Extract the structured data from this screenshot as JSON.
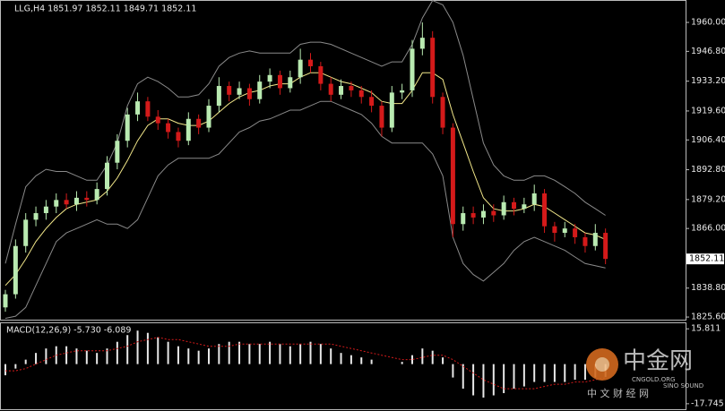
{
  "chart_data": [
    {
      "type": "candlestick",
      "title": "LLG,H4  1851.97 1852.11 1849.71 1852.11",
      "up_color": "#b9eab1",
      "down_color": "#d41a1a",
      "open": [
        1830,
        1836,
        1858,
        1870,
        1873,
        1876,
        1879,
        1877,
        1880,
        1879,
        1884,
        1896,
        1906,
        1918,
        1924,
        1917,
        1914,
        1910,
        1906,
        1916,
        1912,
        1922,
        1931,
        1927,
        1930,
        1925,
        1933,
        1936,
        1930,
        1935,
        1943,
        1940,
        1932,
        1927,
        1931,
        1929,
        1926,
        1922,
        1912,
        1928,
        1929,
        1948,
        1953,
        1926,
        1912,
        1868,
        1873,
        1871,
        1874,
        1872,
        1878,
        1875,
        1877,
        1882,
        1867,
        1864,
        1866,
        1862,
        1858,
        1864
      ],
      "high": [
        1838,
        1861,
        1873,
        1876,
        1879,
        1882,
        1882,
        1883,
        1883,
        1887,
        1899,
        1909,
        1921,
        1928,
        1926,
        1920,
        1916,
        1912,
        1919,
        1918,
        1925,
        1935,
        1933,
        1933,
        1932,
        1936,
        1939,
        1938,
        1938,
        1948,
        1946,
        1942,
        1935,
        1934,
        1933,
        1931,
        1929,
        1924,
        1931,
        1932,
        1952,
        1960,
        1956,
        1928,
        1914,
        1876,
        1876,
        1877,
        1877,
        1881,
        1880,
        1880,
        1886,
        1884,
        1869,
        1869,
        1868,
        1864,
        1868,
        1866
      ],
      "low": [
        1828,
        1834,
        1855,
        1867,
        1870,
        1873,
        1875,
        1874,
        1876,
        1877,
        1881,
        1893,
        1903,
        1915,
        1915,
        1911,
        1907,
        1903,
        1904,
        1909,
        1910,
        1919,
        1924,
        1925,
        1922,
        1923,
        1930,
        1927,
        1928,
        1932,
        1937,
        1929,
        1924,
        1925,
        1926,
        1923,
        1919,
        1908,
        1910,
        1925,
        1926,
        1945,
        1923,
        1909,
        1862,
        1865,
        1868,
        1868,
        1869,
        1870,
        1872,
        1873,
        1874,
        1864,
        1860,
        1862,
        1859,
        1855,
        1856,
        1849.71
      ],
      "close": [
        1836,
        1858,
        1870,
        1873,
        1876,
        1879,
        1877,
        1880,
        1879,
        1884,
        1896,
        1906,
        1918,
        1924,
        1917,
        1914,
        1910,
        1906,
        1916,
        1912,
        1922,
        1931,
        1927,
        1930,
        1925,
        1933,
        1936,
        1930,
        1935,
        1943,
        1940,
        1932,
        1927,
        1931,
        1929,
        1926,
        1922,
        1912,
        1928,
        1929,
        1948,
        1953,
        1926,
        1912,
        1868,
        1873,
        1871,
        1874,
        1872,
        1878,
        1875,
        1877,
        1882,
        1867,
        1864,
        1866,
        1862,
        1858,
        1864,
        1852.11
      ],
      "overlays": [
        {
          "color": "#f3e88a",
          "values": [
            1840,
            1845,
            1852,
            1860,
            1866,
            1871,
            1875,
            1877,
            1878,
            1879,
            1883,
            1889,
            1897,
            1906,
            1913,
            1916,
            1916,
            1914,
            1913,
            1913,
            1915,
            1919,
            1923,
            1926,
            1928,
            1929,
            1931,
            1932,
            1932,
            1935,
            1937,
            1937,
            1935,
            1933,
            1932,
            1930,
            1928,
            1924,
            1923,
            1923,
            1929,
            1937,
            1937,
            1934,
            1918,
            1905,
            1892,
            1880,
            1875,
            1874,
            1874,
            1875,
            1877,
            1876,
            1873,
            1870,
            1867,
            1864,
            1863,
            1861
          ]
        },
        {
          "color": "#8a8a8a",
          "values": [
            1850,
            1868,
            1885,
            1890,
            1893,
            1892,
            1892,
            1890,
            1888,
            1888,
            1895,
            1905,
            1922,
            1932,
            1935,
            1933,
            1930,
            1926,
            1926,
            1927,
            1932,
            1940,
            1944,
            1946,
            1947,
            1946,
            1946,
            1946,
            1946,
            1950,
            1951,
            1951,
            1950,
            1948,
            1946,
            1944,
            1942,
            1940,
            1942,
            1942,
            1950,
            1962,
            1970,
            1968,
            1960,
            1945,
            1925,
            1905,
            1895,
            1890,
            1888,
            1888,
            1890,
            1890,
            1888,
            1885,
            1882,
            1878,
            1875,
            1872
          ]
        },
        {
          "color": "#8a8a8a",
          "values": [
            1825,
            1826,
            1830,
            1840,
            1850,
            1860,
            1864,
            1866,
            1868,
            1870,
            1868,
            1868,
            1866,
            1870,
            1880,
            1890,
            1895,
            1898,
            1898,
            1898,
            1898,
            1900,
            1905,
            1910,
            1912,
            1915,
            1916,
            1918,
            1920,
            1920,
            1922,
            1924,
            1924,
            1922,
            1920,
            1918,
            1914,
            1908,
            1905,
            1905,
            1905,
            1905,
            1900,
            1890,
            1862,
            1850,
            1845,
            1842,
            1846,
            1850,
            1856,
            1860,
            1862,
            1860,
            1858,
            1856,
            1853,
            1850,
            1849,
            1848
          ]
        }
      ],
      "ylim": [
        1824.4,
        1969
      ],
      "yticks": [
        {
          "value": 1960,
          "label": "1960.00"
        },
        {
          "value": 1946.8,
          "label": "1946.80"
        },
        {
          "value": 1933.2,
          "label": "1933.20"
        },
        {
          "value": 1919.6,
          "label": "1919.60"
        },
        {
          "value": 1906.4,
          "label": "1906.40"
        },
        {
          "value": 1892.8,
          "label": "1892.80"
        },
        {
          "value": 1879.2,
          "label": "1879.20"
        },
        {
          "value": 1866,
          "label": "1866.00"
        },
        {
          "value": 1838.8,
          "label": "1838.80"
        },
        {
          "value": 1825.6,
          "label": "1825.60"
        }
      ]
    },
    {
      "type": "macd",
      "title": "MACD(12,26,9) -5.730 -6.089",
      "histogram": {
        "color": "#e8e8e8",
        "values": [
          -5,
          -2,
          2,
          5,
          7,
          8,
          8,
          7,
          6,
          5,
          7,
          10,
          13,
          15,
          14,
          12,
          10,
          8,
          7,
          6,
          7,
          9,
          10,
          10,
          9,
          9,
          10,
          9,
          8,
          9,
          10,
          9,
          7,
          5,
          4,
          3,
          2,
          0,
          0,
          1,
          4,
          7,
          6,
          3,
          -6,
          -11,
          -14,
          -15,
          -14,
          -13,
          -11,
          -10,
          -8,
          -8,
          -8,
          -8,
          -7,
          -7,
          -6,
          -5.73
        ]
      },
      "signal": {
        "color": "#d41a1a",
        "values": [
          -3,
          -3,
          -2,
          0,
          2,
          4,
          5,
          6,
          6,
          6,
          6,
          7,
          8,
          10,
          11,
          12,
          11,
          11,
          10,
          9,
          8,
          8,
          8,
          9,
          9,
          9,
          9,
          9,
          9,
          9,
          9,
          9,
          9,
          8,
          7,
          6,
          5,
          4,
          3,
          2,
          2,
          3,
          4,
          4,
          2,
          -1,
          -4,
          -7,
          -9,
          -11,
          -11,
          -11,
          -11,
          -10,
          -9,
          -9,
          -8,
          -8,
          -7,
          -6.089
        ]
      },
      "ylim": [
        -20.2,
        18.3
      ],
      "yticks": [
        15.811,
        -17.745
      ]
    }
  ],
  "watermark": {
    "logo": "中金网",
    "site": "CNGOLD.ORG",
    "brand": "SINO SOUND",
    "tagline": "中 文 财 经 网"
  }
}
